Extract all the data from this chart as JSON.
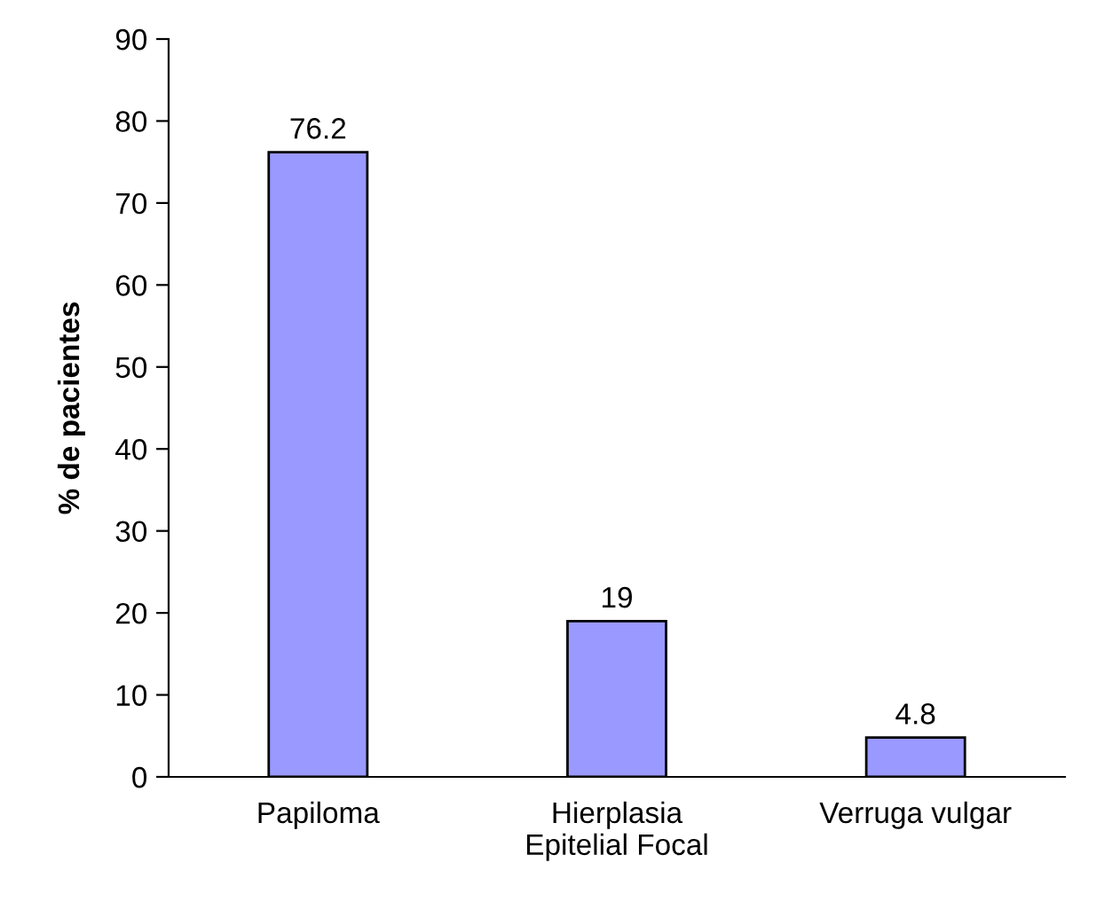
{
  "chart_data": {
    "type": "bar",
    "ylabel": "% de pacientes",
    "categories": [
      "Papiloma",
      "Hierplasia\nEpitelial Focal",
      "Verruga vulgar"
    ],
    "values": [
      76.2,
      19,
      4.8
    ],
    "color": "#9999ff",
    "ylim": [
      0,
      90
    ],
    "yticks": [
      0,
      10,
      20,
      30,
      40,
      50,
      60,
      70,
      80,
      90
    ],
    "data_labels": true,
    "grid": false,
    "legend": false
  }
}
